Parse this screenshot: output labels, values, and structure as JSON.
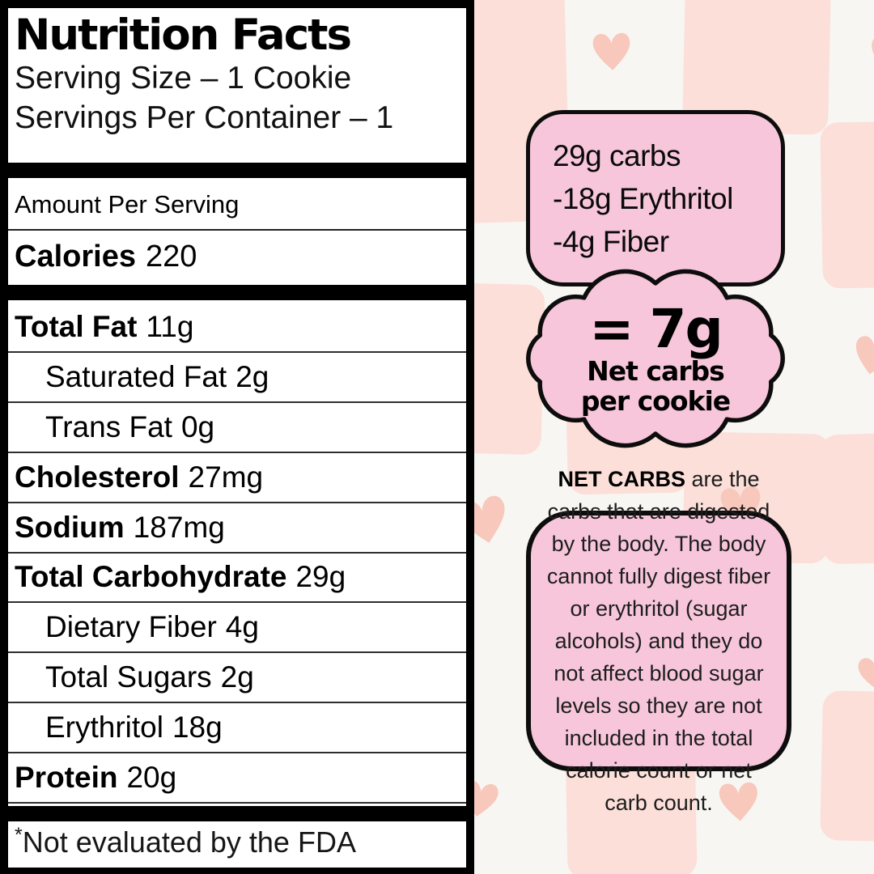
{
  "colors": {
    "bg": "#f8f6f2",
    "checker_pink": "#fcdfd9",
    "heart_pink": "#f7c8bb",
    "callout_pink": "#f7c6da",
    "outline": "#0d0d0d",
    "label_bg": "#ffffff",
    "label_text": "#000000"
  },
  "icons": {
    "heart": "heart-icon"
  },
  "label": {
    "title": "Nutrition Facts",
    "serving_size": "Serving Size – 1 Cookie",
    "servings_per_container": "Servings Per Container – 1",
    "amount_per_serving": "Amount Per Serving",
    "calories_label": "Calories",
    "calories_value": "220",
    "rows": [
      {
        "name": "Total Fat",
        "value": "11g",
        "bold": true,
        "indent": false
      },
      {
        "name": "Saturated Fat",
        "value": "2g",
        "bold": false,
        "indent": true
      },
      {
        "name": "Trans Fat",
        "value": "0g",
        "bold": false,
        "indent": true
      },
      {
        "name": "Cholesterol",
        "value": "27mg",
        "bold": true,
        "indent": false
      },
      {
        "name": "Sodium",
        "value": "187mg",
        "bold": true,
        "indent": false
      },
      {
        "name": "Total Carbohydrate",
        "value": "29g",
        "bold": true,
        "indent": false
      },
      {
        "name": "Dietary Fiber",
        "value": "4g",
        "bold": false,
        "indent": true
      },
      {
        "name": "Total Sugars",
        "value": "2g",
        "bold": false,
        "indent": true
      },
      {
        "name": "Erythritol",
        "value": "18g",
        "bold": false,
        "indent": true
      },
      {
        "name": "Protein",
        "value": "20g",
        "bold": true,
        "indent": false
      }
    ],
    "footnote_mark": "*",
    "footnote": "Not evaluated by the FDA"
  },
  "callouts": {
    "subtraction": {
      "lines": [
        "29g carbs",
        "-18g Erythritol",
        "-4g Fiber"
      ]
    },
    "cloud": {
      "headline": "= 7g",
      "subline1": "Net carbs",
      "subline2": "per cookie"
    },
    "explainer": {
      "lead": "NET CARBS",
      "body": " are the carbs that are digested by the body. The body cannot fully digest fiber or erythritol (sugar alcohols) and they do not affect blood sugar levels so they are not included in the total calorie count or net carb count."
    }
  }
}
